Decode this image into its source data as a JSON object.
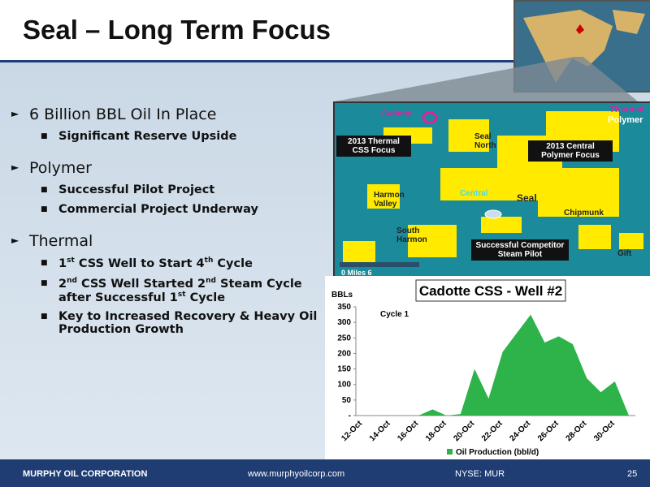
{
  "header": {
    "title": "Seal – Long Term Focus"
  },
  "bullets": [
    {
      "text": "6 Billion BBL Oil In Place",
      "sub": [
        {
          "parts": [
            "Significant Reserve Upside"
          ]
        }
      ]
    },
    {
      "text": "Polymer",
      "sub": [
        {
          "parts": [
            "Successful Pilot Project"
          ]
        },
        {
          "parts": [
            "Commercial Project Underway"
          ]
        }
      ]
    },
    {
      "text": "Thermal",
      "sub": [
        {
          "parts": [
            "1",
            "st",
            " CSS Well to Start 4",
            "th",
            " Cycle"
          ]
        },
        {
          "parts": [
            "2",
            "nd",
            " CSS Well Started 2",
            "nd",
            " Steam Cycle after Successful 1",
            "st",
            " Cycle"
          ]
        },
        {
          "parts": [
            "Key to Increased Recovery & Heavy Oil Production Growth"
          ]
        }
      ]
    }
  ],
  "map": {
    "labels": [
      "Cadotte",
      "Thermal",
      "Polymer",
      "2013 Thermal CSS Focus",
      "Seal North",
      "2013 Central Polymer Focus",
      "Harmon Valley",
      "Central",
      "Seal",
      "Chipmunk",
      "South Harmon",
      "Successful Competitor Steam Pilot",
      "Gift",
      "0  Miles  6"
    ]
  },
  "chart_data": {
    "type": "area",
    "title": "Cadotte CSS - Well #2",
    "y_label": "BBLs",
    "annotation": "Cycle 1",
    "categories": [
      "12-Oct",
      null,
      "14-Oct",
      null,
      "16-Oct",
      null,
      "18-Oct",
      null,
      "20-Oct",
      null,
      "22-Oct",
      null,
      "24-Oct",
      null,
      "26-Oct",
      null,
      "28-Oct",
      null,
      "30-Oct",
      null
    ],
    "series": [
      {
        "name": "Oil Production (bbl/d)",
        "color": "#2eb34a",
        "values": [
          0,
          0,
          0,
          0,
          0,
          20,
          0,
          5,
          150,
          55,
          205,
          265,
          325,
          235,
          255,
          230,
          120,
          75,
          110,
          0
        ]
      }
    ],
    "ylim": [
      0,
      350
    ],
    "yticks": [
      {
        "value": 0,
        "label": "-"
      },
      50,
      100,
      150,
      200,
      250,
      300,
      350
    ],
    "grid": false
  },
  "footer": {
    "company": "MURPHY OIL CORPORATION",
    "url": "www.murphyoilcorp.com",
    "ticker": "NYSE: MUR",
    "page": "25"
  }
}
